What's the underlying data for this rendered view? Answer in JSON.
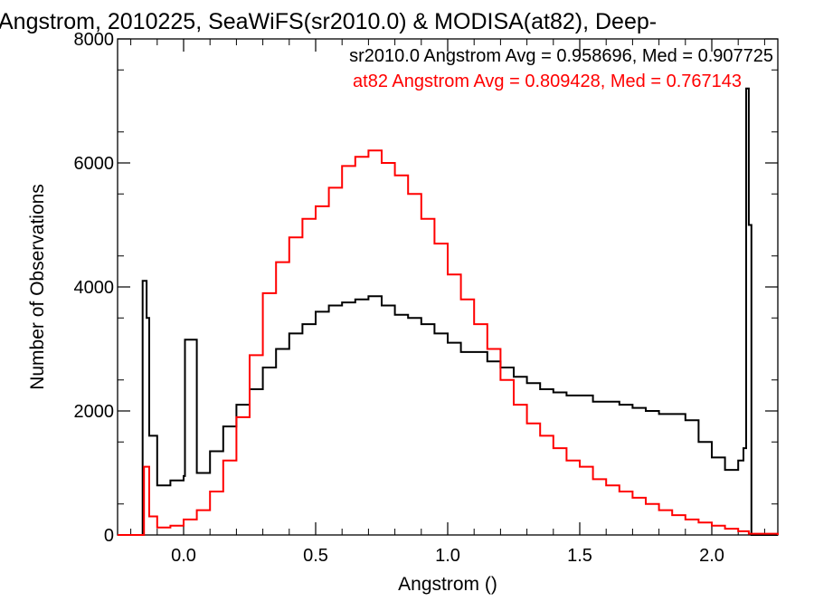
{
  "chart_data": {
    "type": "line",
    "title": "Angstrom, 2010225, SeaWiFS(sr2010.0) & MODISA(at82), Deep-",
    "xlabel": "Angstrom ()",
    "ylabel": "Number of Observations",
    "xlim": [
      -0.25,
      2.25
    ],
    "ylim": [
      0,
      8000
    ],
    "x_ticks": [
      0.0,
      0.5,
      1.0,
      1.5,
      2.0
    ],
    "x_tick_labels": [
      "0.0",
      "0.5",
      "1.0",
      "1.5",
      "2.0"
    ],
    "y_ticks": [
      0,
      2000,
      4000,
      6000,
      8000
    ],
    "y_tick_labels": [
      "0",
      "2000",
      "4000",
      "6000",
      "8000"
    ],
    "grid": false,
    "legend_position": "top-right",
    "annotations": [
      {
        "text": "sr2010.0 Angstrom Avg = 0.958696, Med = 0.907725",
        "color": "#000000"
      },
      {
        "text": "at82 Angstrom Avg = 0.809428, Med = 0.767143",
        "color": "#ff0000"
      }
    ],
    "series": [
      {
        "name": "sr2010.0",
        "color": "#000000",
        "x": [
          -0.25,
          -0.16,
          -0.155,
          -0.14,
          -0.13,
          -0.1,
          -0.05,
          0,
          0.005,
          0.05,
          0.1,
          0.15,
          0.2,
          0.25,
          0.3,
          0.35,
          0.4,
          0.45,
          0.5,
          0.55,
          0.6,
          0.65,
          0.7,
          0.75,
          0.8,
          0.85,
          0.9,
          0.95,
          1.0,
          1.05,
          1.1,
          1.15,
          1.2,
          1.25,
          1.3,
          1.35,
          1.4,
          1.45,
          1.5,
          1.55,
          1.6,
          1.65,
          1.7,
          1.75,
          1.8,
          1.85,
          1.9,
          1.95,
          2.0,
          2.05,
          2.1,
          2.12,
          2.13,
          2.14,
          2.15,
          2.25
        ],
        "y": [
          0,
          0,
          4100,
          3500,
          1600,
          800,
          880,
          950,
          3150,
          1000,
          1350,
          1750,
          2100,
          2350,
          2700,
          3000,
          3250,
          3400,
          3600,
          3700,
          3750,
          3800,
          3850,
          3700,
          3550,
          3500,
          3400,
          3250,
          3100,
          2950,
          2950,
          2800,
          2700,
          2550,
          2450,
          2350,
          2300,
          2250,
          2250,
          2150,
          2150,
          2100,
          2050,
          2000,
          1950,
          1950,
          1850,
          1500,
          1250,
          1050,
          1200,
          1400,
          7200,
          5000,
          0,
          0
        ]
      },
      {
        "name": "at82",
        "color": "#ff0000",
        "x": [
          -0.25,
          -0.16,
          -0.15,
          -0.13,
          -0.1,
          -0.05,
          0,
          0.05,
          0.1,
          0.15,
          0.2,
          0.25,
          0.3,
          0.35,
          0.4,
          0.45,
          0.5,
          0.55,
          0.6,
          0.65,
          0.7,
          0.75,
          0.8,
          0.85,
          0.9,
          0.95,
          1.0,
          1.05,
          1.1,
          1.15,
          1.2,
          1.25,
          1.3,
          1.35,
          1.4,
          1.45,
          1.5,
          1.55,
          1.6,
          1.65,
          1.7,
          1.75,
          1.8,
          1.85,
          1.9,
          1.95,
          2.0,
          2.05,
          2.1,
          2.14,
          2.25
        ],
        "y": [
          0,
          0,
          1100,
          300,
          120,
          150,
          250,
          400,
          700,
          1200,
          1900,
          2900,
          3900,
          4400,
          4800,
          5100,
          5300,
          5600,
          5950,
          6100,
          6200,
          6000,
          5800,
          5500,
          5100,
          4700,
          4200,
          3800,
          3400,
          3000,
          2500,
          2100,
          1800,
          1600,
          1400,
          1200,
          1100,
          900,
          800,
          700,
          600,
          500,
          400,
          320,
          250,
          200,
          150,
          100,
          60,
          20,
          0
        ]
      }
    ]
  }
}
